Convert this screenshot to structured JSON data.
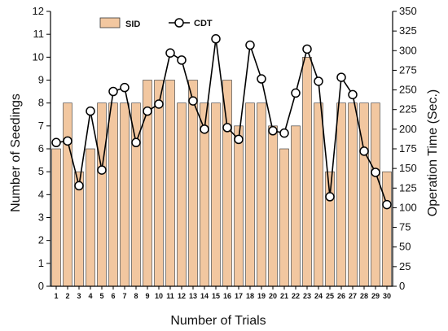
{
  "chart_data": {
    "type": "bar",
    "title": "",
    "xlabel": "Number of Trials",
    "ylabel_left": "Number of Seedings",
    "ylabel_right": "Operation Time (Sec.)",
    "categories": [
      1,
      2,
      3,
      4,
      5,
      6,
      7,
      8,
      9,
      10,
      11,
      12,
      13,
      14,
      15,
      16,
      17,
      18,
      19,
      20,
      21,
      22,
      23,
      24,
      25,
      26,
      27,
      28,
      29,
      30
    ],
    "ylim_left": [
      0,
      12
    ],
    "ylim_right": [
      0,
      350
    ],
    "yticks_left": [
      0,
      1,
      2,
      3,
      4,
      5,
      6,
      7,
      8,
      9,
      10,
      11,
      12
    ],
    "yticks_right": [
      0,
      25,
      50,
      75,
      100,
      125,
      150,
      175,
      200,
      225,
      250,
      275,
      300,
      325,
      350
    ],
    "legend_position": "top",
    "series": [
      {
        "name": "SID",
        "kind": "bar",
        "axis": "left",
        "color": "#f2c7a0",
        "edge_color": "#333333",
        "values": [
          6,
          8,
          5,
          6,
          8,
          8,
          8,
          8,
          9,
          9,
          9,
          8,
          9,
          8,
          8,
          9,
          7,
          8,
          8,
          7,
          6,
          7,
          10,
          8,
          5,
          8,
          8,
          8,
          8,
          5
        ]
      },
      {
        "name": "CDT",
        "kind": "line",
        "axis": "right",
        "color": "#000000",
        "marker": "open-circle",
        "values": [
          183,
          185,
          128,
          223,
          148,
          248,
          253,
          183,
          223,
          232,
          297,
          288,
          236,
          200,
          315,
          202,
          187,
          307,
          264,
          198,
          195,
          246,
          302,
          261,
          114,
          266,
          244,
          172,
          145,
          104
        ]
      }
    ]
  }
}
